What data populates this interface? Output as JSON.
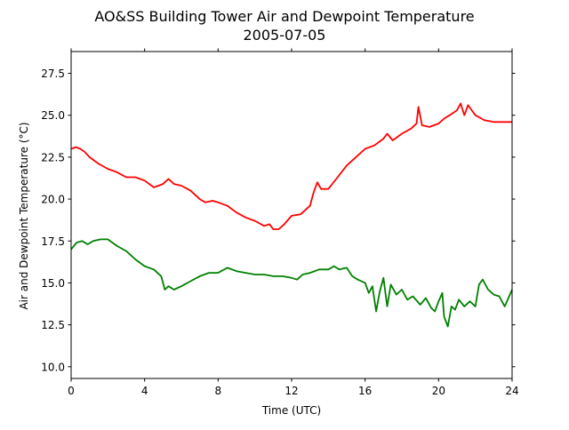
{
  "chart_data": {
    "type": "line",
    "title": "AO&SS Building Tower Air and Dewpoint Temperature",
    "subtitle": "2005-07-05",
    "xlabel": "Time (UTC)",
    "ylabel": "Air and Dewpoint Temperature (°C)",
    "xlim": [
      0,
      24
    ],
    "ylim": [
      9.3,
      28.8
    ],
    "grid": false,
    "x_ticks": [
      0,
      4,
      8,
      12,
      16,
      20,
      24
    ],
    "x_tick_labels": [
      "0",
      "4",
      "8",
      "12",
      "16",
      "20",
      "24"
    ],
    "y_ticks": [
      10.0,
      12.5,
      15.0,
      17.5,
      20.0,
      22.5,
      25.0,
      27.5
    ],
    "y_tick_labels": [
      "10.0",
      "12.5",
      "15.0",
      "17.5",
      "20.0",
      "22.5",
      "25.0",
      "27.5"
    ],
    "series": [
      {
        "color": "#ff0000",
        "x": [
          0,
          0.25,
          0.5,
          0.75,
          1,
          1.5,
          2,
          2.5,
          3,
          3.5,
          4,
          4.5,
          5,
          5.3,
          5.6,
          6,
          6.5,
          7,
          7.3,
          7.7,
          8,
          8.5,
          9,
          9.5,
          10,
          10.5,
          10.8,
          11,
          11.3,
          11.6,
          12,
          12.5,
          13,
          13.2,
          13.4,
          13.6,
          14,
          14.5,
          15,
          15.5,
          16,
          16.5,
          17,
          17.2,
          17.5,
          18,
          18.5,
          18.8,
          18.9,
          19.1,
          19.5,
          20,
          20.3,
          20.6,
          21,
          21.2,
          21.4,
          21.6,
          22,
          22.5,
          23,
          23.5,
          24
        ],
        "y": [
          23.0,
          23.1,
          23.0,
          22.8,
          22.5,
          22.1,
          21.8,
          21.6,
          21.3,
          21.3,
          21.1,
          20.7,
          20.9,
          21.2,
          20.9,
          20.8,
          20.5,
          20.0,
          19.8,
          19.9,
          19.8,
          19.6,
          19.2,
          18.9,
          18.7,
          18.4,
          18.5,
          18.2,
          18.2,
          18.5,
          19.0,
          19.1,
          19.6,
          20.4,
          21.0,
          20.6,
          20.6,
          21.3,
          22.0,
          22.5,
          23.0,
          23.2,
          23.6,
          23.9,
          23.5,
          23.9,
          24.2,
          24.5,
          25.5,
          24.4,
          24.3,
          24.5,
          24.8,
          25.0,
          25.3,
          25.7,
          25.0,
          25.6,
          25.0,
          24.7,
          24.6,
          24.6,
          24.6
        ]
      },
      {
        "color": "#008000",
        "x": [
          0,
          0.3,
          0.6,
          0.9,
          1.2,
          1.6,
          2,
          2.5,
          3,
          3.5,
          4,
          4.5,
          4.9,
          5.1,
          5.3,
          5.6,
          6,
          6.5,
          7,
          7.5,
          8,
          8.5,
          9,
          9.5,
          10,
          10.5,
          11,
          11.5,
          12,
          12.3,
          12.6,
          13,
          13.5,
          14,
          14.3,
          14.6,
          15,
          15.3,
          15.6,
          16,
          16.2,
          16.4,
          16.6,
          16.8,
          17,
          17.2,
          17.4,
          17.7,
          18,
          18.3,
          18.6,
          19,
          19.3,
          19.6,
          19.8,
          20,
          20.2,
          20.3,
          20.5,
          20.7,
          20.9,
          21.1,
          21.4,
          21.7,
          22,
          22.2,
          22.4,
          22.7,
          23,
          23.3,
          23.6,
          23.8,
          24
        ],
        "y": [
          17.0,
          17.4,
          17.5,
          17.3,
          17.5,
          17.6,
          17.6,
          17.2,
          16.9,
          16.4,
          16.0,
          15.8,
          15.4,
          14.6,
          14.8,
          14.6,
          14.8,
          15.1,
          15.4,
          15.6,
          15.6,
          15.9,
          15.7,
          15.6,
          15.5,
          15.5,
          15.4,
          15.4,
          15.3,
          15.2,
          15.5,
          15.6,
          15.8,
          15.8,
          16.0,
          15.8,
          15.9,
          15.4,
          15.2,
          15.0,
          14.4,
          14.8,
          13.3,
          14.5,
          15.3,
          13.6,
          14.9,
          14.3,
          14.6,
          14.0,
          14.2,
          13.7,
          14.1,
          13.5,
          13.3,
          13.9,
          14.4,
          13.0,
          12.4,
          13.6,
          13.4,
          14.0,
          13.6,
          13.9,
          13.6,
          14.9,
          15.2,
          14.6,
          14.3,
          14.2,
          13.6,
          14.1,
          14.6
        ]
      }
    ]
  }
}
